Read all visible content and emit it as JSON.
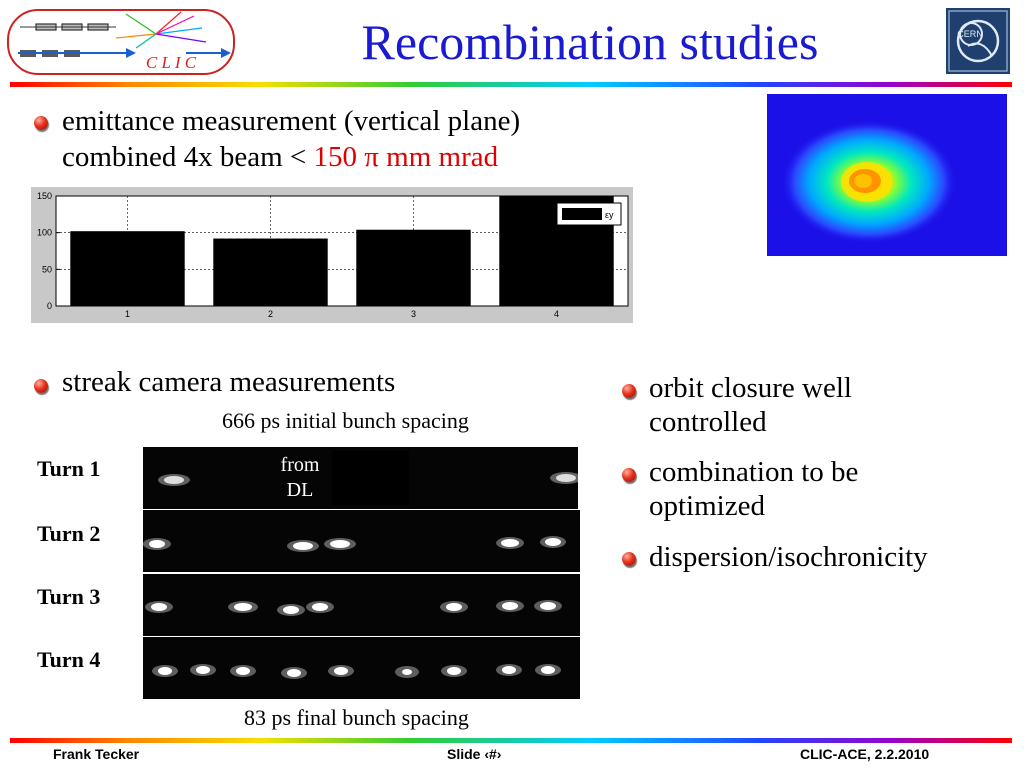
{
  "header": {
    "logo_text": "C L I C",
    "title": "Recombination studies",
    "cern_logo_text": "CERN"
  },
  "bullets": {
    "emittance_line1": "emittance measurement (vertical plane)",
    "emittance_line2_prefix": "combined 4x beam < ",
    "emittance_line2_value": "150 π mm mrad",
    "streak": "streak camera measurements",
    "right": [
      "orbit closure well controlled",
      "combination to be optimized",
      "dispersion/isochronicity"
    ]
  },
  "chart_data": {
    "type": "bar",
    "categories": [
      "1",
      "2",
      "3",
      "4"
    ],
    "values": [
      102,
      92,
      104,
      150
    ],
    "ylim": [
      0,
      150
    ],
    "yticks": [
      "0",
      "50",
      "100",
      "150"
    ],
    "legend": "εy",
    "legend_position": "top-right",
    "grid": true,
    "bar_color": "#000000"
  },
  "streak": {
    "caption_top": "666 ps initial bunch spacing",
    "caption_bottom": "83 ps final bunch spacing",
    "from_dl": "from DL",
    "turns": [
      "Turn 1",
      "Turn 2",
      "Turn 3",
      "Turn 4"
    ]
  },
  "footer": {
    "author": "Frank Tecker",
    "slide": "Slide ‹#›",
    "event": "CLIC-ACE, 2.2.2010"
  },
  "colors": {
    "title": "#1a1ad0",
    "highlight": "#e00000",
    "beam_background": "#1b10e8"
  }
}
